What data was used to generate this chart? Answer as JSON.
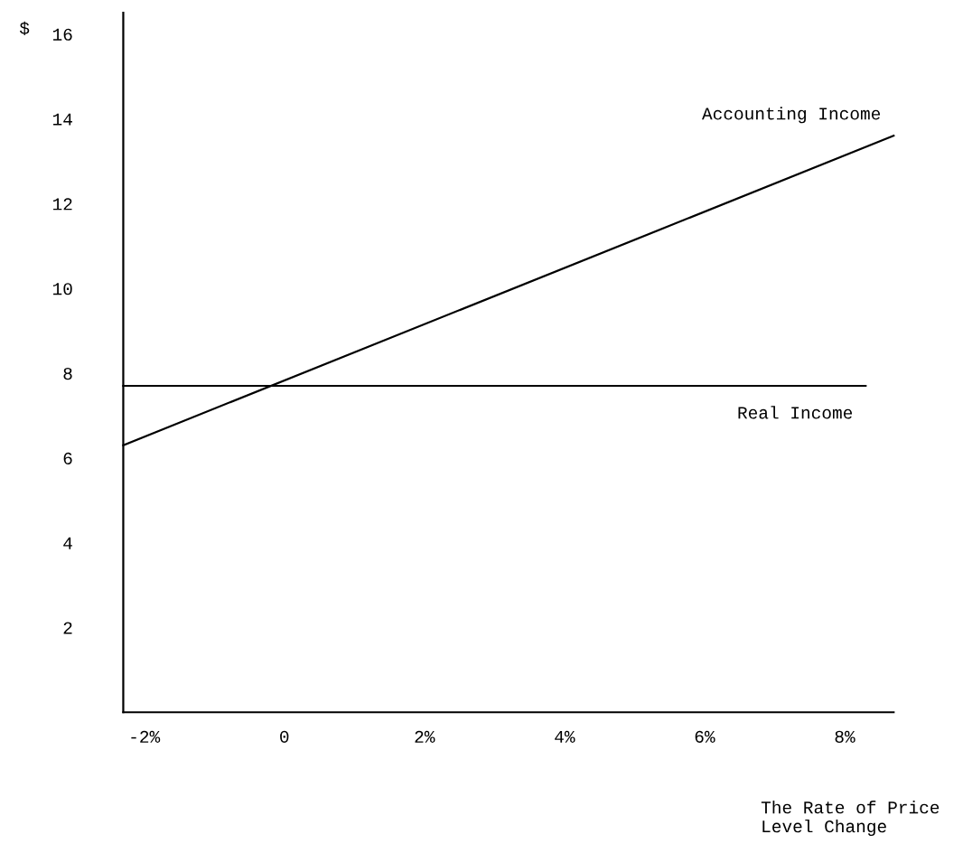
{
  "chart_data": {
    "type": "line",
    "ylabel": "$",
    "xlabel": "The Rate of Price\nLevel Change",
    "series": [
      {
        "name": "Accounting Income",
        "color": "#000000",
        "x": [
          -2.3,
          8.7
        ],
        "values": [
          6.3,
          13.6
        ]
      },
      {
        "name": "Real Income",
        "color": "#000000",
        "x": [
          -2.3,
          8.3
        ],
        "values": [
          7.7,
          7.7
        ]
      }
    ],
    "xlim": [
      -2.3,
      8.7
    ],
    "ylim": [
      0,
      16.5
    ],
    "xticks": [
      {
        "value": -2,
        "label": "-2%"
      },
      0,
      {
        "value": 2,
        "label": "2%"
      },
      {
        "value": 4,
        "label": "4%"
      },
      {
        "value": 6,
        "label": "6%"
      },
      {
        "value": 8,
        "label": "8%"
      }
    ],
    "yticks": [
      2,
      4,
      6,
      8,
      10,
      12,
      14,
      16
    ],
    "grid": false,
    "legend": false,
    "line_style": "solid",
    "marker": "none"
  }
}
